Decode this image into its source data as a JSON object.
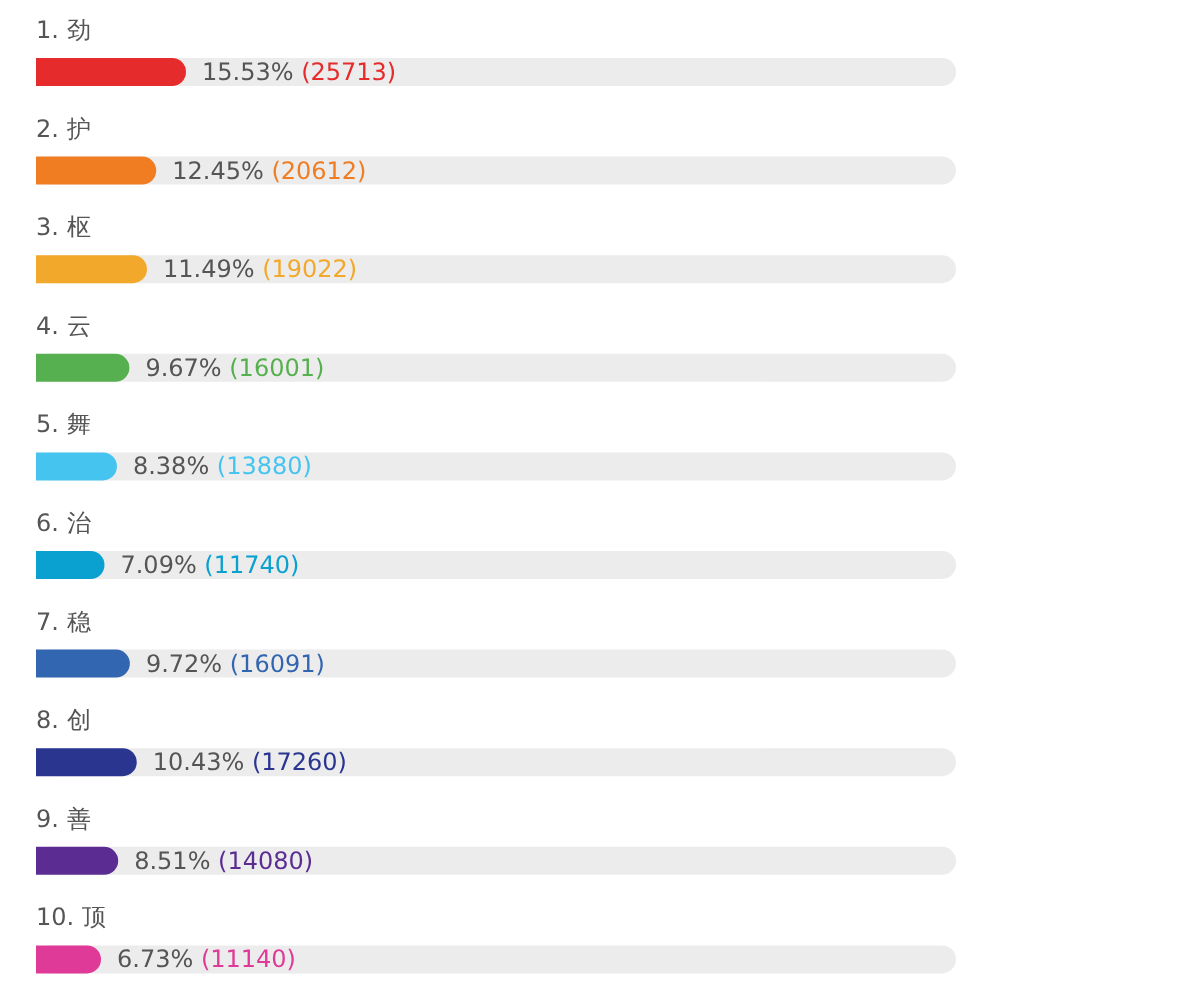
{
  "chart_data": {
    "type": "bar",
    "orientation": "horizontal",
    "categories": [
      "1. 劲",
      "2. 护",
      "3. 枢",
      "4. 云",
      "5. 舞",
      "6. 治",
      "7. 稳",
      "8. 创",
      "9. 善",
      "10. 顶"
    ],
    "values": [
      15.53,
      12.45,
      11.49,
      9.67,
      8.38,
      7.09,
      9.72,
      10.43,
      8.51,
      6.73
    ],
    "colors": [
      "#e52b2b",
      "#f07d22",
      "#f2a82a",
      "#56b04f",
      "#45c4f0",
      "#0aa0cf",
      "#3366b0",
      "#2a3590",
      "#5b2d92",
      "#e03a98"
    ],
    "value_labels": [
      "15.53% (25713)",
      "12.45% (20612)",
      "11.49% (19022)",
      "9.67% (16001)",
      "8.38% (13880)",
      "7.09% (11740)",
      "9.72% (16091)",
      "10.43% (17260)",
      "8.51% (14080)",
      "6.73% (11140)"
    ]
  }
}
